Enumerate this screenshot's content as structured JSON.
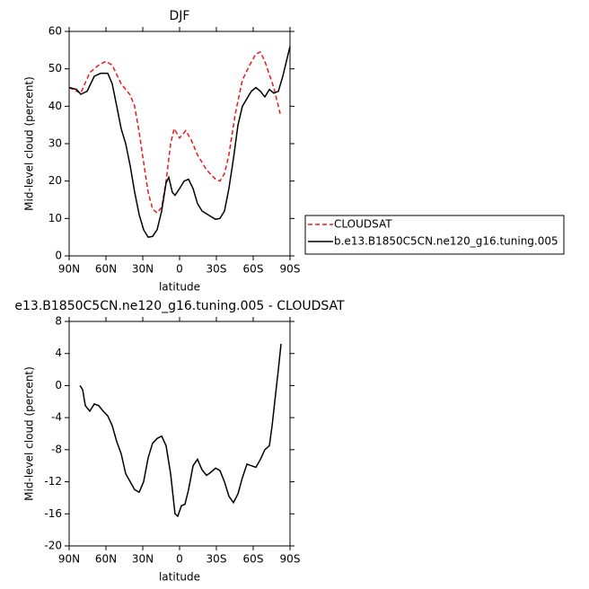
{
  "chart_data": [
    {
      "type": "line",
      "title": "DJF",
      "xlabel": "latitude",
      "ylabel": "Mid-level cloud (percent)",
      "xlim": [
        90,
        -90
      ],
      "xticks": [
        {
          "value": 90,
          "label": "90N"
        },
        {
          "value": 60,
          "label": "60N"
        },
        {
          "value": 30,
          "label": "30N"
        },
        0,
        {
          "value": -30,
          "label": "30S"
        },
        {
          "value": -60,
          "label": "60S"
        },
        {
          "value": -90,
          "label": "90S"
        }
      ],
      "ylim": [
        0,
        60
      ],
      "yticks": [
        0,
        10,
        20,
        30,
        40,
        50,
        60
      ],
      "legend": "right",
      "series": [
        {
          "name": "CLOUDSAT",
          "color": "#e8191c",
          "line_style": "dashed",
          "x": [
            90,
            80.5,
            73.2,
            65.9,
            60,
            54.9,
            47.6,
            40.2,
            36.6,
            32.9,
            29.3,
            25.6,
            22,
            18.3,
            14.6,
            11,
            7.3,
            4.4,
            0,
            -5.1,
            -9.5,
            -14.6,
            -22,
            -29.3,
            -32.9,
            -36.6,
            -40.2,
            -45.4,
            -51.2,
            -57.1,
            -62.2,
            -65.9,
            -69.5,
            -76.8,
            -82
          ],
          "values": [
            45,
            43.5,
            49,
            51,
            52,
            51,
            46,
            43,
            40,
            33,
            25,
            17,
            12.5,
            11.5,
            13,
            20,
            30,
            34,
            31.5,
            33.5,
            31,
            27,
            23,
            20.5,
            20,
            22,
            27,
            38,
            47,
            51,
            54,
            54.5,
            52,
            45,
            38
          ]
        },
        {
          "name": "b.e13.B1850C5CN.ne120_g16.tuning.005",
          "color": "#000000",
          "line_style": "solid",
          "x": [
            90,
            84,
            80.5,
            75.4,
            69.5,
            64.4,
            58.5,
            54.9,
            51.2,
            47.6,
            43.9,
            40.2,
            36.6,
            32.9,
            29.3,
            25.6,
            22,
            18.3,
            14.6,
            11,
            8.8,
            5.9,
            3.7,
            0,
            -3.7,
            -7.3,
            -11,
            -14.6,
            -18.3,
            -25.6,
            -29.3,
            -32.9,
            -36.6,
            -40.2,
            -43.9,
            -47.6,
            -51.2,
            -58.5,
            -62.2,
            -65.9,
            -69.5,
            -73.2,
            -76.8,
            -80.5,
            -84.1,
            -90
          ],
          "values": [
            45,
            44.5,
            43.2,
            44,
            48,
            48.8,
            48.8,
            46,
            40,
            34,
            30,
            24,
            17,
            11,
            7,
            5,
            5.2,
            7,
            12,
            19.5,
            21,
            17,
            16.2,
            18,
            20,
            20.5,
            18,
            14,
            12,
            10.5,
            9.8,
            10,
            12,
            18,
            26,
            35,
            40,
            44,
            45,
            44,
            42.5,
            44.5,
            43.5,
            44,
            48,
            56
          ]
        }
      ]
    },
    {
      "type": "line",
      "title": "e13.B1850C5CN.ne120_g16.tuning.005 - CLOUDSAT",
      "xlabel": "latitude",
      "ylabel": "Mid-level cloud (percent)",
      "xlim": [
        90,
        -90
      ],
      "xticks": [
        {
          "value": 90,
          "label": "90N"
        },
        {
          "value": 60,
          "label": "60N"
        },
        {
          "value": 30,
          "label": "30N"
        },
        0,
        {
          "value": -30,
          "label": "30S"
        },
        {
          "value": -60,
          "label": "60S"
        },
        {
          "value": -90,
          "label": "90S"
        }
      ],
      "ylim": [
        -20,
        8
      ],
      "yticks": [
        -20,
        -16,
        -12,
        -8,
        -4,
        0,
        4,
        8
      ],
      "series": [
        {
          "color": "#000000",
          "line_style": "solid",
          "x": [
            81.2,
            79,
            76.8,
            73.2,
            69.5,
            65.9,
            62.2,
            58.5,
            54.9,
            51.2,
            47.6,
            43.9,
            40.2,
            36.6,
            32.9,
            29.3,
            25.6,
            22,
            18.3,
            14.6,
            11,
            7.3,
            3.7,
            1.5,
            -1.5,
            -4.4,
            -7.3,
            -11,
            -14.6,
            -18.3,
            -22,
            -25.6,
            -29.3,
            -32.9,
            -36.6,
            -40.2,
            -43.9,
            -47.6,
            -51.2,
            -54.9,
            -58.5,
            -62.2,
            -65.9,
            -69.5,
            -73.2,
            -75.4,
            -78.3,
            -80.5,
            -82.7
          ],
          "values": [
            0,
            -0.5,
            -2.5,
            -3.2,
            -2.3,
            -2.5,
            -3.2,
            -3.8,
            -5,
            -7,
            -8.5,
            -11,
            -12,
            -13,
            -13.3,
            -12,
            -9,
            -7.2,
            -6.6,
            -6.3,
            -7.5,
            -11,
            -16,
            -16.3,
            -15,
            -14.8,
            -13,
            -10,
            -9.2,
            -10.5,
            -11.2,
            -10.8,
            -10.3,
            -10.6,
            -12,
            -13.8,
            -14.6,
            -13.5,
            -11.5,
            -9.8,
            -10,
            -10.2,
            -9.2,
            -8,
            -7.5,
            -5,
            -1,
            2,
            5.2
          ]
        }
      ]
    }
  ]
}
